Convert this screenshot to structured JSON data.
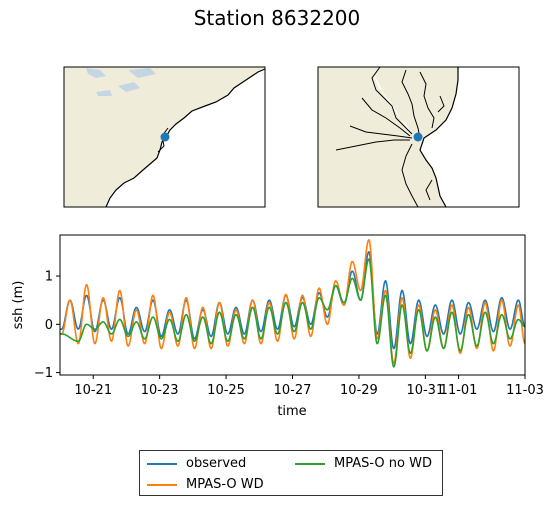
{
  "title": "Station 8632200",
  "chart_data": [
    {
      "type": "map",
      "panel": "left",
      "marker_color": "#1f77b4",
      "land_color": "#efedda",
      "water_color": "#c4d6e4",
      "extent_label": "US East Coast overview"
    },
    {
      "type": "map",
      "panel": "right",
      "marker_color": "#1f77b4",
      "land_color": "#efedda",
      "extent_label": "Chesapeake Bay zoom"
    },
    {
      "type": "line",
      "xlabel": "time",
      "ylabel": "ssh (m)",
      "x_ticks": [
        "10-21",
        "10-23",
        "10-25",
        "10-27",
        "10-29",
        "10-31",
        "11-01",
        "11-03"
      ],
      "x_tick_days": [
        21,
        23,
        25,
        27,
        29,
        31,
        32,
        34
      ],
      "x_range_days": [
        20,
        34
      ],
      "y_ticks": [
        -1,
        0,
        1
      ],
      "ylim": [
        -1.05,
        1.85
      ],
      "legend": "lower center",
      "series": [
        {
          "name": "observed",
          "color": "#1f77b4",
          "peaks": [
            [
              20.3,
              0.5
            ],
            [
              20.8,
              0.6
            ],
            [
              21.3,
              0.5
            ],
            [
              21.8,
              0.55
            ],
            [
              22.3,
              0.35
            ],
            [
              22.8,
              0.5
            ],
            [
              23.3,
              0.3
            ],
            [
              23.8,
              0.5
            ],
            [
              24.3,
              0.3
            ],
            [
              24.8,
              0.45
            ],
            [
              25.3,
              0.35
            ],
            [
              25.8,
              0.5
            ],
            [
              26.3,
              0.5
            ],
            [
              26.8,
              0.6
            ],
            [
              27.3,
              0.55
            ],
            [
              27.8,
              0.65
            ],
            [
              28.3,
              0.8
            ],
            [
              28.8,
              1.1
            ],
            [
              29.3,
              1.5
            ],
            [
              29.8,
              0.9
            ],
            [
              30.3,
              0.7
            ],
            [
              30.8,
              0.5
            ],
            [
              31.3,
              0.4
            ],
            [
              31.8,
              0.5
            ],
            [
              32.3,
              0.45
            ],
            [
              32.8,
              0.5
            ],
            [
              33.3,
              0.55
            ],
            [
              33.8,
              0.5
            ]
          ],
          "troughs": [
            [
              20.05,
              -0.1
            ],
            [
              20.55,
              -0.1
            ],
            [
              21.05,
              -0.15
            ],
            [
              21.55,
              -0.1
            ],
            [
              22.05,
              -0.2
            ],
            [
              22.55,
              -0.15
            ],
            [
              23.05,
              -0.25
            ],
            [
              23.55,
              -0.2
            ],
            [
              24.05,
              -0.3
            ],
            [
              24.55,
              -0.25
            ],
            [
              25.05,
              -0.2
            ],
            [
              25.55,
              -0.2
            ],
            [
              26.05,
              -0.15
            ],
            [
              26.55,
              -0.1
            ],
            [
              27.05,
              -0.05
            ],
            [
              27.55,
              0.0
            ],
            [
              28.05,
              0.15
            ],
            [
              28.55,
              0.4
            ],
            [
              29.05,
              0.5
            ],
            [
              29.55,
              -0.2
            ],
            [
              30.05,
              -0.5
            ],
            [
              30.55,
              -0.4
            ],
            [
              31.05,
              -0.25
            ],
            [
              31.55,
              -0.2
            ],
            [
              32.05,
              -0.2
            ],
            [
              32.55,
              -0.1
            ],
            [
              33.05,
              -0.15
            ],
            [
              33.55,
              -0.1
            ],
            [
              34.0,
              -0.05
            ]
          ]
        },
        {
          "name": "MPAS-O WD",
          "color": "#ff7f0e",
          "peaks": [
            [
              20.3,
              0.5
            ],
            [
              20.8,
              0.82
            ],
            [
              21.3,
              0.55
            ],
            [
              21.8,
              0.7
            ],
            [
              22.3,
              0.3
            ],
            [
              22.8,
              0.6
            ],
            [
              23.3,
              0.25
            ],
            [
              23.8,
              0.55
            ],
            [
              24.3,
              0.35
            ],
            [
              24.8,
              0.45
            ],
            [
              25.3,
              0.3
            ],
            [
              25.8,
              0.5
            ],
            [
              26.3,
              0.45
            ],
            [
              26.8,
              0.62
            ],
            [
              27.3,
              0.6
            ],
            [
              27.8,
              0.75
            ],
            [
              28.3,
              0.9
            ],
            [
              28.8,
              1.3
            ],
            [
              29.3,
              1.75
            ],
            [
              29.8,
              0.7
            ],
            [
              30.3,
              0.55
            ],
            [
              30.8,
              0.4
            ],
            [
              31.3,
              0.3
            ],
            [
              31.8,
              0.4
            ],
            [
              32.3,
              0.35
            ],
            [
              32.8,
              0.45
            ],
            [
              33.3,
              0.5
            ],
            [
              33.8,
              0.4
            ]
          ],
          "troughs": [
            [
              20.05,
              -0.2
            ],
            [
              20.55,
              -0.4
            ],
            [
              21.05,
              -0.4
            ],
            [
              21.55,
              -0.35
            ],
            [
              22.05,
              -0.45
            ],
            [
              22.55,
              -0.4
            ],
            [
              23.05,
              -0.5
            ],
            [
              23.55,
              -0.45
            ],
            [
              24.05,
              -0.5
            ],
            [
              24.55,
              -0.5
            ],
            [
              25.05,
              -0.45
            ],
            [
              25.55,
              -0.4
            ],
            [
              26.05,
              -0.4
            ],
            [
              26.55,
              -0.35
            ],
            [
              27.05,
              -0.3
            ],
            [
              27.55,
              -0.25
            ],
            [
              28.05,
              0.0
            ],
            [
              28.55,
              0.4
            ],
            [
              29.05,
              0.7
            ],
            [
              29.55,
              -0.3
            ],
            [
              30.05,
              -0.8
            ],
            [
              30.55,
              -0.7
            ],
            [
              31.05,
              -0.55
            ],
            [
              31.55,
              -0.5
            ],
            [
              32.05,
              -0.6
            ],
            [
              32.55,
              -0.5
            ],
            [
              33.05,
              -0.55
            ],
            [
              33.55,
              -0.45
            ],
            [
              34.0,
              -0.4
            ]
          ]
        },
        {
          "name": "MPAS-O no WD",
          "color": "#2ca02c",
          "peaks": [
            [
              20.8,
              0.0
            ],
            [
              21.3,
              0.05
            ],
            [
              21.8,
              0.1
            ],
            [
              22.3,
              0.05
            ],
            [
              22.8,
              0.15
            ],
            [
              23.3,
              0.1
            ],
            [
              23.8,
              0.2
            ],
            [
              24.3,
              0.15
            ],
            [
              24.8,
              0.25
            ],
            [
              25.3,
              0.2
            ],
            [
              25.8,
              0.35
            ],
            [
              26.3,
              0.35
            ],
            [
              26.8,
              0.45
            ],
            [
              27.3,
              0.45
            ],
            [
              27.8,
              0.55
            ],
            [
              28.3,
              0.8
            ],
            [
              28.8,
              0.95
            ],
            [
              29.3,
              1.35
            ],
            [
              29.8,
              0.6
            ],
            [
              30.3,
              0.4
            ],
            [
              30.8,
              0.3
            ],
            [
              31.3,
              0.15
            ],
            [
              31.8,
              0.25
            ],
            [
              32.3,
              0.2
            ],
            [
              32.8,
              0.25
            ],
            [
              33.3,
              0.2
            ],
            [
              33.8,
              0.1
            ]
          ],
          "troughs": [
            [
              20.05,
              -0.2
            ],
            [
              20.55,
              -0.35
            ],
            [
              21.05,
              -0.1
            ],
            [
              21.55,
              -0.2
            ],
            [
              22.05,
              -0.25
            ],
            [
              22.55,
              -0.3
            ],
            [
              23.05,
              -0.3
            ],
            [
              23.55,
              -0.35
            ],
            [
              24.05,
              -0.35
            ],
            [
              24.55,
              -0.4
            ],
            [
              25.05,
              -0.35
            ],
            [
              25.55,
              -0.3
            ],
            [
              26.05,
              -0.3
            ],
            [
              26.55,
              -0.2
            ],
            [
              27.05,
              -0.15
            ],
            [
              27.55,
              -0.1
            ],
            [
              28.05,
              0.3
            ],
            [
              28.55,
              0.45
            ],
            [
              29.05,
              0.5
            ],
            [
              29.55,
              -0.4
            ],
            [
              30.05,
              -0.88
            ],
            [
              30.55,
              -0.6
            ],
            [
              31.05,
              -0.55
            ],
            [
              31.55,
              -0.5
            ],
            [
              32.05,
              -0.55
            ],
            [
              32.55,
              -0.45
            ],
            [
              33.05,
              -0.4
            ],
            [
              33.55,
              -0.3
            ],
            [
              34.0,
              -0.05
            ]
          ]
        }
      ]
    }
  ]
}
